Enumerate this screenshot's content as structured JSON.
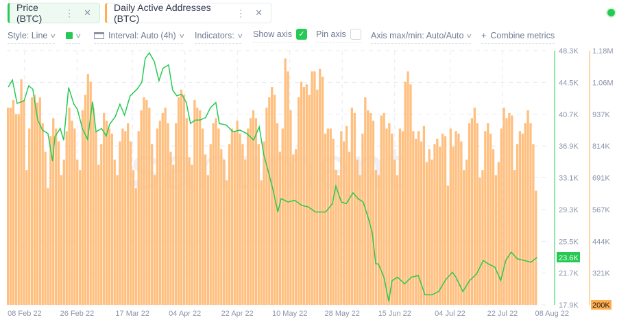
{
  "tabs": [
    {
      "label": "Price (BTC)",
      "color": "#26c953"
    },
    {
      "label": "Daily Active Addresses (BTC)",
      "color": "#ffad4d"
    }
  ],
  "toolbar": {
    "style": "Style: Line",
    "interval": "Interval: Auto (4h)",
    "indicators": "Indicators:",
    "show_axis": "Show axis",
    "show_axis_checked": true,
    "pin_axis": "Pin axis",
    "pin_axis_checked": false,
    "axis_minmax": "Axis max/min: Auto/Auto",
    "combine": "Combine metrics"
  },
  "watermark": "santiment",
  "chart_data": {
    "type": "bar+line",
    "x_unit": "days since 01 Feb 22",
    "x_range": [
      0.9,
      183.0
    ],
    "x_ticks": [
      {
        "label": "08 Feb 22",
        "day": 7
      },
      {
        "label": "26 Feb 22",
        "day": 25
      },
      {
        "label": "17 Mar 22",
        "day": 44
      },
      {
        "label": "04 Apr 22",
        "day": 62
      },
      {
        "label": "22 Apr 22",
        "day": 80
      },
      {
        "label": "10 May 22",
        "day": 98
      },
      {
        "label": "28 May 22",
        "day": 116
      },
      {
        "label": "15 Jun 22",
        "day": 134
      },
      {
        "label": "04 Jul 22",
        "day": 153
      },
      {
        "label": "22 Jul 22",
        "day": 171
      },
      {
        "label": "08 Aug 22",
        "day": 188
      }
    ],
    "price": {
      "name": "Price (BTC)",
      "color": "#26c953",
      "ylim": [
        17.9,
        48.3
      ],
      "ticks": [
        "48.3K",
        "44.5K",
        "40.7K",
        "36.9K",
        "33.1K",
        "29.3K",
        "25.5K",
        "21.7K",
        "17.9K"
      ],
      "current_label": "23.6K",
      "current": 23.6,
      "points": [
        [
          1.4,
          43.95
        ],
        [
          2.8,
          44.8
        ],
        [
          4.4,
          42.0
        ],
        [
          6.8,
          42.3
        ],
        [
          8.4,
          44.1
        ],
        [
          9.8,
          43.7
        ],
        [
          11.5,
          40.0
        ],
        [
          13.1,
          38.8
        ],
        [
          15.0,
          38.4
        ],
        [
          16.6,
          35.1
        ],
        [
          17.4,
          38.0
        ],
        [
          19.2,
          39.0
        ],
        [
          20.4,
          37.6
        ],
        [
          22.1,
          43.9
        ],
        [
          23.9,
          41.9
        ],
        [
          25.1,
          41.3
        ],
        [
          26.8,
          39.0
        ],
        [
          28.6,
          37.7
        ],
        [
          30.3,
          42.2
        ],
        [
          31.5,
          38.6
        ],
        [
          33.4,
          39.0
        ],
        [
          35.0,
          38.1
        ],
        [
          36.2,
          39.5
        ],
        [
          38.1,
          40.4
        ],
        [
          39.7,
          41.9
        ],
        [
          41.3,
          40.6
        ],
        [
          43.2,
          42.9
        ],
        [
          45.6,
          43.7
        ],
        [
          47.2,
          44.5
        ],
        [
          48.4,
          47.4
        ],
        [
          49.8,
          48.05
        ],
        [
          51.5,
          47.0
        ],
        [
          53.1,
          44.7
        ],
        [
          54.5,
          46.2
        ],
        [
          56.4,
          46.6
        ],
        [
          57.8,
          43.6
        ],
        [
          59.2,
          42.9
        ],
        [
          60.9,
          43.1
        ],
        [
          62.5,
          42.1
        ],
        [
          63.9,
          39.6
        ],
        [
          65.6,
          40.0
        ],
        [
          67.2,
          40.0
        ],
        [
          69.1,
          40.3
        ],
        [
          70.8,
          41.5
        ],
        [
          72.6,
          42.1
        ],
        [
          73.8,
          39.6
        ],
        [
          76.2,
          39.4
        ],
        [
          78.5,
          38.6
        ],
        [
          80.9,
          38.8
        ],
        [
          83.2,
          38.4
        ],
        [
          85.6,
          37.6
        ],
        [
          87.5,
          39.2
        ],
        [
          89.1,
          35.8
        ],
        [
          90.3,
          34.3
        ],
        [
          92.2,
          31.7
        ],
        [
          93.9,
          29.0
        ],
        [
          95.0,
          30.6
        ],
        [
          97.4,
          30.2
        ],
        [
          99.7,
          30.4
        ],
        [
          102.1,
          29.8
        ],
        [
          104.4,
          29.6
        ],
        [
          106.8,
          29.0
        ],
        [
          110.3,
          29.0
        ],
        [
          112.6,
          30.0
        ],
        [
          113.8,
          32.1
        ],
        [
          115.7,
          30.2
        ],
        [
          117.4,
          30.0
        ],
        [
          119.7,
          31.3
        ],
        [
          121.4,
          30.6
        ],
        [
          123.2,
          30.2
        ],
        [
          125.1,
          28.1
        ],
        [
          126.3,
          26.5
        ],
        [
          127.5,
          22.8
        ],
        [
          128.4,
          22.8
        ],
        [
          130.3,
          21.2
        ],
        [
          132.0,
          18.3
        ],
        [
          133.1,
          20.8
        ],
        [
          135.0,
          21.2
        ],
        [
          137.4,
          20.4
        ],
        [
          139.7,
          21.2
        ],
        [
          142.1,
          21.4
        ],
        [
          144.4,
          19.1
        ],
        [
          146.8,
          19.1
        ],
        [
          149.1,
          19.5
        ],
        [
          151.5,
          20.9
        ],
        [
          153.8,
          21.8
        ],
        [
          155.0,
          21.2
        ],
        [
          157.4,
          19.5
        ],
        [
          159.7,
          20.8
        ],
        [
          162.1,
          21.6
        ],
        [
          164.4,
          23.2
        ],
        [
          166.1,
          22.8
        ],
        [
          168.4,
          22.4
        ],
        [
          170.4,
          20.8
        ],
        [
          172.1,
          23.2
        ],
        [
          174.0,
          24.2
        ],
        [
          176.1,
          23.4
        ],
        [
          178.5,
          23.2
        ],
        [
          180.8,
          23.0
        ],
        [
          182.9,
          23.6
        ]
      ]
    },
    "daa": {
      "name": "Daily Active Addresses (BTC)",
      "color": "#ffad4d",
      "ylim": [
        200,
        1180
      ],
      "unit": "K",
      "ticks": [
        "1.18M",
        "1.06M",
        "937K",
        "814K",
        "691K",
        "567K",
        "444K",
        "321K",
        "200K"
      ],
      "bottom_label": "200K",
      "values": [
        960,
        960,
        990,
        935,
        935,
        1070,
        990,
        720,
        880,
        1000,
        1010,
        980,
        1000,
        900,
        790,
        650,
        850,
        920,
        880,
        830,
        700,
        760,
        870,
        960,
        910,
        880,
        760,
        720,
        950,
        1010,
        1090,
        1060,
        960,
        870,
        740,
        820,
        940,
        910,
        880,
        860,
        760,
        700,
        830,
        880,
        870,
        900,
        830,
        720,
        650,
        870,
        950,
        1000,
        990,
        960,
        820,
        700,
        880,
        910,
        940,
        960,
        900,
        790,
        740,
        900,
        1000,
        1030,
        1010,
        920,
        770,
        740,
        990,
        960,
        950,
        880,
        780,
        700,
        820,
        900,
        920,
        880,
        800,
        760,
        680,
        820,
        880,
        870,
        910,
        860,
        820,
        760,
        880,
        920,
        950,
        920,
        820,
        680,
        830,
        960,
        1000,
        1040,
        1010,
        900,
        790,
        880,
        1150,
        1100,
        950,
        780,
        800,
        1000,
        1060,
        1040,
        1050,
        1010,
        1100,
        1100,
        1030,
        1110,
        1080,
        860,
        880,
        880,
        840,
        720,
        700,
        870,
        830,
        890,
        790,
        960,
        940,
        760,
        700,
        860,
        1000,
        950,
        940,
        910,
        720,
        700,
        930,
        940,
        880,
        900,
        860,
        760,
        700,
        880,
        870,
        1060,
        1100,
        1050,
        870,
        840,
        870,
        830,
        890,
        750,
        800,
        760,
        820,
        840,
        810,
        860,
        850,
        660,
        880,
        810,
        870,
        860,
        830,
        720,
        760,
        900,
        920,
        960,
        900,
        690,
        720,
        870,
        900,
        860,
        800,
        700,
        750,
        880,
        960,
        920,
        940,
        930,
        720,
        820,
        870,
        860,
        900,
        950,
        900,
        820,
        640
      ]
    }
  }
}
